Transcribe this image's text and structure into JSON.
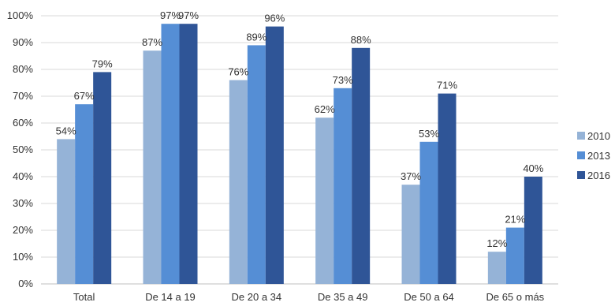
{
  "chart_data": {
    "type": "bar",
    "title": "",
    "xlabel": "",
    "ylabel": "",
    "ylim": [
      0,
      100
    ],
    "y_ticks": [
      "0%",
      "10%",
      "20%",
      "30%",
      "40%",
      "50%",
      "60%",
      "70%",
      "80%",
      "90%",
      "100%"
    ],
    "grid": true,
    "legend_position": "right",
    "categories": [
      "Total",
      "De 14 a 19",
      "De 20 a 34",
      "De 35 a 49",
      "De 50 a 64",
      "De 65 o más"
    ],
    "series": [
      {
        "name": "2010",
        "color": "#95b3d7",
        "values": [
          54,
          87,
          76,
          62,
          37,
          12
        ],
        "labels": [
          "54%",
          "87%",
          "76%",
          "62%",
          "37%",
          "12%"
        ]
      },
      {
        "name": "2013",
        "color": "#558ed5",
        "values": [
          67,
          97,
          89,
          73,
          53,
          21
        ],
        "labels": [
          "67%",
          "97%",
          "89%",
          "73%",
          "53%",
          "21%"
        ]
      },
      {
        "name": "2016",
        "color": "#2f5597",
        "values": [
          79,
          97,
          96,
          88,
          71,
          40
        ],
        "labels": [
          "79%",
          "97%",
          "96%",
          "88%",
          "71%",
          "40%"
        ]
      }
    ]
  }
}
